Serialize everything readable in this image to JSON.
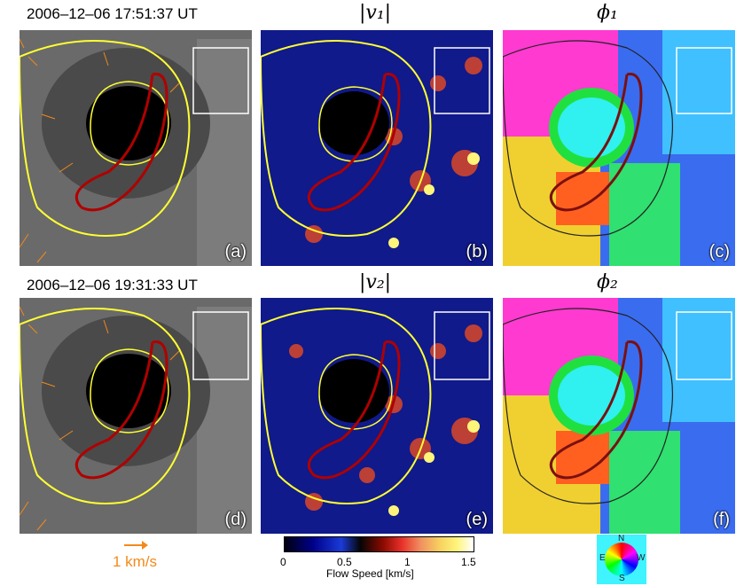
{
  "headers": {
    "time_1": "2006–12–06 17:51:37 UT",
    "time_2": "2006–12–06 19:31:33 UT",
    "v1": "|v₁|",
    "v2": "|v₂|",
    "phi1": "ϕ₁",
    "phi2": "ϕ₂"
  },
  "panel_labels": [
    "(a)",
    "(b)",
    "(c)",
    "(d)",
    "(e)",
    "(f)"
  ],
  "arrow_legend": "1 km/s",
  "colorbar": {
    "ticks": [
      "0",
      "0.5",
      "1",
      "1.5"
    ],
    "label": "Flow Speed  [km/s]"
  },
  "compass": {
    "n": "N",
    "s": "S",
    "e": "E",
    "w": "W"
  },
  "colors": {
    "contour": "#ffff33",
    "region": "#b00000",
    "arrow": "#f28a1a",
    "umbra": "#000000"
  }
}
